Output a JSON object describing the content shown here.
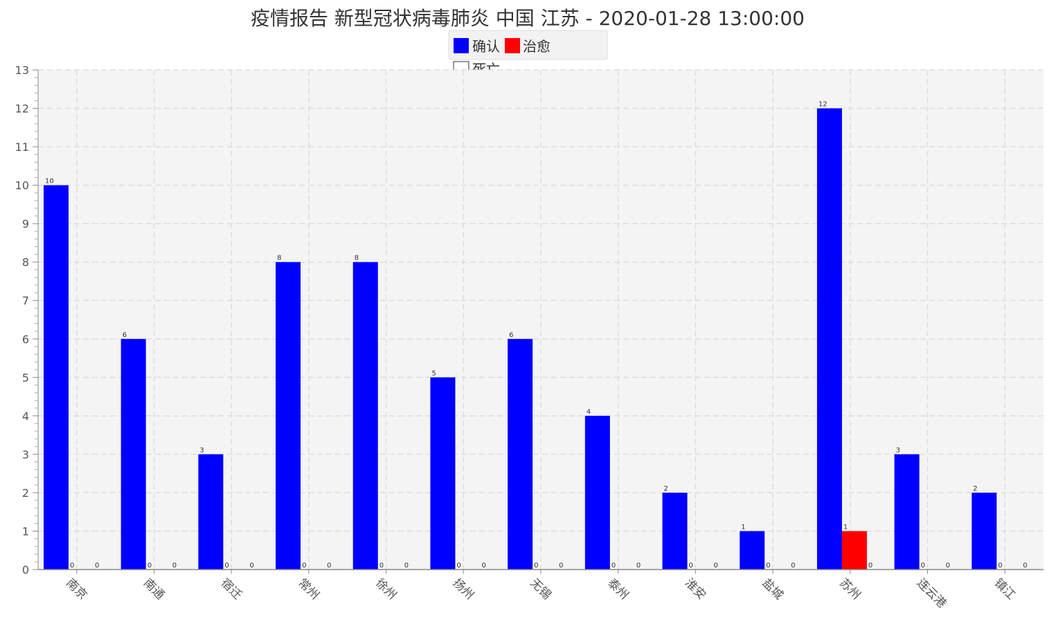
{
  "chart_data": {
    "type": "bar",
    "title": "疫情报告 新型冠状病毒肺炎 中国 江苏 - 2020-01-28 13:00:00",
    "categories": [
      "南京",
      "南通",
      "宿迁",
      "常州",
      "徐州",
      "扬州",
      "无锡",
      "泰州",
      "淮安",
      "盐城",
      "苏州",
      "连云港",
      "镇江"
    ],
    "series": [
      {
        "name": "确认",
        "color": "#0000ff",
        "values": [
          10,
          6,
          3,
          8,
          8,
          5,
          6,
          4,
          2,
          1,
          12,
          3,
          2
        ]
      },
      {
        "name": "治愈",
        "color": "#ff0000",
        "values": [
          0,
          0,
          0,
          0,
          0,
          0,
          0,
          0,
          0,
          0,
          1,
          0,
          0
        ]
      },
      {
        "name": "死亡",
        "color": "#ffffff",
        "values": [
          0,
          0,
          0,
          0,
          0,
          0,
          0,
          0,
          0,
          0,
          0,
          0,
          0
        ]
      }
    ],
    "ylim": [
      0,
      13
    ],
    "yticks": [
      0,
      1,
      2,
      3,
      4,
      5,
      6,
      7,
      8,
      9,
      10,
      11,
      12,
      13
    ],
    "grid": true,
    "legend_position": "top-center",
    "xlabel": "",
    "ylabel": ""
  }
}
